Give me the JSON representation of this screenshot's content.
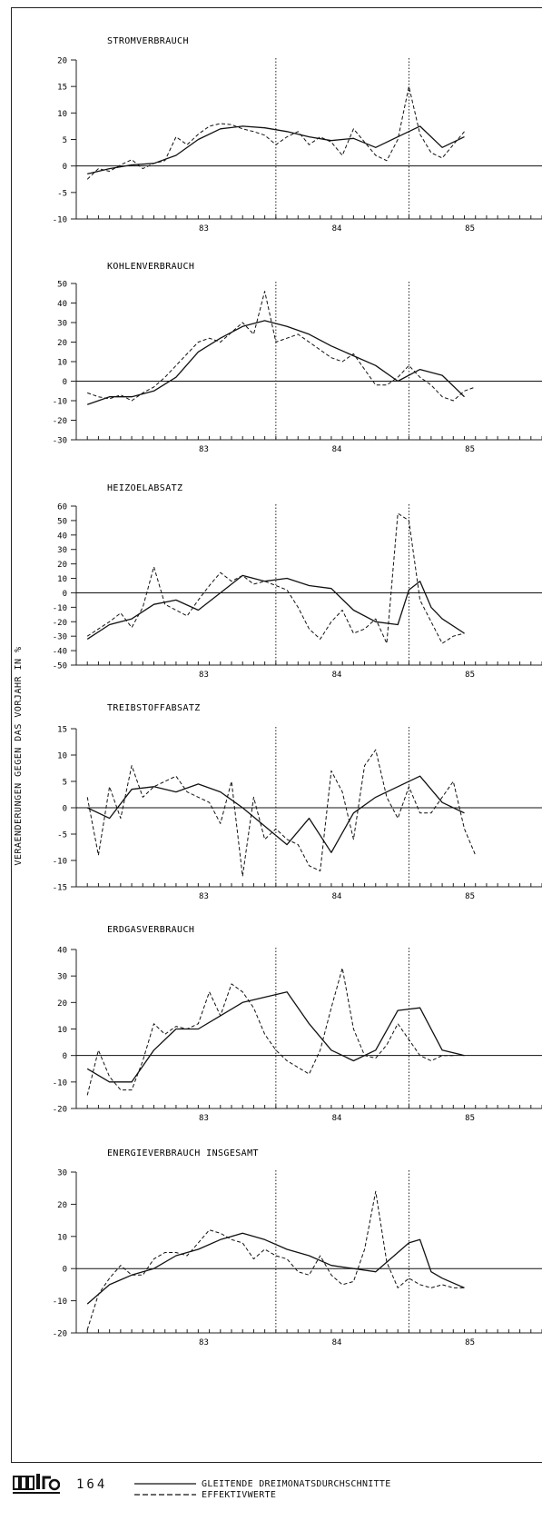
{
  "axis_label": "VERAENDERUNGEN GEGEN DAS VORJAHR IN %",
  "page_number": "164",
  "logo_name": "wifo-logo",
  "legend": [
    {
      "label": "GLEITENDE DREIMONATSDURCHSCHNITTE",
      "style": "solid"
    },
    {
      "label": "EFFEKTIVWERTE",
      "style": "dashed"
    }
  ],
  "colors": {
    "line": "#111111",
    "axis": "#222222",
    "background": "#ffffff"
  },
  "chart_data": [
    {
      "type": "line",
      "title": "STROMVERBRAUCH",
      "ylim": [
        -10,
        20
      ],
      "yticks": [
        20,
        15,
        10,
        5,
        0,
        -5,
        -10
      ],
      "x_tick_labels": [
        "83",
        "84",
        "85"
      ],
      "x_range_months": "1982-07 .. 1985-12",
      "period_markers": [
        "1984-01",
        "1985-01"
      ],
      "series": [
        {
          "name": "GLEITENDE DREIMONATSDURCHSCHNITTE",
          "style": "solid",
          "x": [
            "1982-08",
            "1982-10",
            "1982-12",
            "1983-02",
            "1983-04",
            "1983-06",
            "1983-08",
            "1983-10",
            "1983-12",
            "1984-02",
            "1984-04",
            "1984-06",
            "1984-08",
            "1984-10",
            "1984-12",
            "1985-02",
            "1985-04",
            "1985-06"
          ],
          "values": [
            -1.5,
            -0.5,
            0.2,
            0.5,
            2.0,
            5.0,
            7.0,
            7.5,
            7.2,
            6.5,
            5.5,
            4.8,
            5.2,
            3.5,
            5.5,
            7.5,
            3.5,
            5.5
          ]
        },
        {
          "name": "EFFEKTIVWERTE",
          "style": "dashed",
          "x": [
            "1982-08",
            "1982-09",
            "1982-10",
            "1982-11",
            "1982-12",
            "1983-01",
            "1983-02",
            "1983-03",
            "1983-04",
            "1983-05",
            "1983-06",
            "1983-07",
            "1983-08",
            "1983-09",
            "1983-10",
            "1983-11",
            "1983-12",
            "1984-01",
            "1984-02",
            "1984-03",
            "1984-04",
            "1984-05",
            "1984-06",
            "1984-07",
            "1984-08",
            "1984-09",
            "1984-10",
            "1984-11",
            "1984-12",
            "1985-01",
            "1985-02",
            "1985-03",
            "1985-04",
            "1985-05",
            "1985-06"
          ],
          "values": [
            -2.5,
            -0.5,
            -1.0,
            0.2,
            1.2,
            -0.5,
            0.5,
            1.0,
            5.5,
            4.0,
            6.0,
            7.5,
            8.0,
            7.8,
            7.0,
            6.5,
            5.8,
            4.0,
            5.5,
            6.5,
            4.0,
            5.5,
            4.5,
            2.0,
            7.0,
            4.5,
            2.0,
            1.0,
            5.0,
            15.0,
            6.0,
            2.5,
            1.5,
            4.0,
            6.5
          ]
        }
      ]
    },
    {
      "type": "line",
      "title": "KOHLENVERBRAUCH",
      "ylim": [
        -30,
        50
      ],
      "yticks": [
        50,
        40,
        30,
        20,
        10,
        0,
        -10,
        -20,
        -30
      ],
      "x_tick_labels": [
        "83",
        "84",
        "85"
      ],
      "x_range_months": "1982-07 .. 1985-12",
      "period_markers": [
        "1984-01",
        "1985-01"
      ],
      "series": [
        {
          "name": "GLEITENDE DREIMONATSDURCHSCHNITTE",
          "style": "solid",
          "x": [
            "1982-08",
            "1982-10",
            "1982-12",
            "1983-02",
            "1983-04",
            "1983-06",
            "1983-08",
            "1983-10",
            "1983-12",
            "1984-02",
            "1984-04",
            "1984-06",
            "1984-08",
            "1984-10",
            "1984-12",
            "1985-02",
            "1985-04",
            "1985-06"
          ],
          "values": [
            -12,
            -8,
            -8,
            -5,
            2,
            15,
            22,
            28,
            31,
            28,
            24,
            18,
            13,
            8,
            0,
            6,
            3,
            -8
          ]
        },
        {
          "name": "EFFEKTIVWERTE",
          "style": "dashed",
          "x": [
            "1982-08",
            "1982-09",
            "1982-10",
            "1982-11",
            "1982-12",
            "1983-01",
            "1983-02",
            "1983-03",
            "1983-04",
            "1983-05",
            "1983-06",
            "1983-07",
            "1983-08",
            "1983-09",
            "1983-10",
            "1983-11",
            "1983-12",
            "1984-01",
            "1984-02",
            "1984-03",
            "1984-04",
            "1984-05",
            "1984-06",
            "1984-07",
            "1984-08",
            "1984-09",
            "1984-10",
            "1984-11",
            "1984-12",
            "1985-01",
            "1985-02",
            "1985-03",
            "1985-04",
            "1985-05",
            "1985-06",
            "1985-07"
          ],
          "values": [
            -6,
            -8,
            -9,
            -7,
            -10,
            -6,
            -3,
            2,
            8,
            14,
            20,
            22,
            20,
            25,
            30,
            24,
            46,
            20,
            22,
            24,
            20,
            16,
            12,
            10,
            14,
            6,
            -2,
            -2,
            2,
            8,
            2,
            -2,
            -8,
            -10,
            -5,
            -3
          ]
        }
      ]
    },
    {
      "type": "line",
      "title": "HEIZOELABSATZ",
      "ylim": [
        -50,
        60
      ],
      "yticks": [
        60,
        50,
        40,
        30,
        20,
        10,
        0,
        -10,
        -20,
        -30,
        -40,
        -50
      ],
      "x_tick_labels": [
        "83",
        "84",
        "85"
      ],
      "x_range_months": "1982-07 .. 1985-12",
      "period_markers": [
        "1984-01",
        "1985-01"
      ],
      "series": [
        {
          "name": "GLEITENDE DREIMONATSDURCHSCHNITTE",
          "style": "solid",
          "x": [
            "1982-08",
            "1982-10",
            "1982-12",
            "1983-02",
            "1983-04",
            "1983-06",
            "1983-08",
            "1983-10",
            "1983-12",
            "1984-02",
            "1984-04",
            "1984-06",
            "1984-08",
            "1984-10",
            "1984-12",
            "1985-01",
            "1985-02",
            "1985-03",
            "1985-04",
            "1985-06"
          ],
          "values": [
            -32,
            -22,
            -18,
            -8,
            -5,
            -12,
            0,
            12,
            8,
            10,
            5,
            3,
            -12,
            -20,
            -22,
            2,
            8,
            -10,
            -18,
            -28
          ]
        },
        {
          "name": "EFFEKTIVWERTE",
          "style": "dashed",
          "x": [
            "1982-08",
            "1982-09",
            "1982-10",
            "1982-11",
            "1982-12",
            "1983-01",
            "1983-02",
            "1983-03",
            "1983-04",
            "1983-05",
            "1983-06",
            "1983-07",
            "1983-08",
            "1983-09",
            "1983-10",
            "1983-11",
            "1983-12",
            "1984-01",
            "1984-02",
            "1984-03",
            "1984-04",
            "1984-05",
            "1984-06",
            "1984-07",
            "1984-08",
            "1984-09",
            "1984-10",
            "1984-11",
            "1984-12",
            "1985-01",
            "1985-02",
            "1985-03",
            "1985-04",
            "1985-05",
            "1985-06"
          ],
          "values": [
            -30,
            -25,
            -20,
            -14,
            -24,
            -10,
            18,
            -8,
            -12,
            -16,
            -5,
            5,
            14,
            8,
            12,
            6,
            8,
            5,
            2,
            -10,
            -25,
            -32,
            -20,
            -12,
            -28,
            -25,
            -18,
            -35,
            55,
            50,
            -5,
            -20,
            -35,
            -30,
            -28
          ]
        }
      ]
    },
    {
      "type": "line",
      "title": "TREIBSTOFFABSATZ",
      "ylim": [
        -15,
        15
      ],
      "yticks": [
        15,
        10,
        5,
        0,
        -5,
        -10,
        -15
      ],
      "x_tick_labels": [
        "83",
        "84",
        "85"
      ],
      "x_range_months": "1982-07 .. 1985-12",
      "period_markers": [
        "1984-01",
        "1985-01"
      ],
      "series": [
        {
          "name": "GLEITENDE DREIMONATSDURCHSCHNITTE",
          "style": "solid",
          "x": [
            "1982-08",
            "1982-10",
            "1982-12",
            "1983-02",
            "1983-04",
            "1983-06",
            "1983-08",
            "1983-10",
            "1983-12",
            "1984-02",
            "1984-04",
            "1984-06",
            "1984-08",
            "1984-10",
            "1984-12",
            "1985-02",
            "1985-04",
            "1985-06"
          ],
          "values": [
            0,
            -2,
            3.5,
            4,
            3,
            4.5,
            3,
            0,
            -3.5,
            -7,
            -2,
            -8.5,
            -1,
            2,
            4,
            6,
            1,
            -1
          ]
        },
        {
          "name": "EFFEKTIVWERTE",
          "style": "dashed",
          "x": [
            "1982-08",
            "1982-09",
            "1982-10",
            "1982-11",
            "1982-12",
            "1983-01",
            "1983-02",
            "1983-03",
            "1983-04",
            "1983-05",
            "1983-06",
            "1983-07",
            "1983-08",
            "1983-09",
            "1983-10",
            "1983-11",
            "1983-12",
            "1984-01",
            "1984-02",
            "1984-03",
            "1984-04",
            "1984-05",
            "1984-06",
            "1984-07",
            "1984-08",
            "1984-09",
            "1984-10",
            "1984-11",
            "1984-12",
            "1985-01",
            "1985-02",
            "1985-03",
            "1985-04",
            "1985-05",
            "1985-06",
            "1985-07"
          ],
          "values": [
            2,
            -9,
            4,
            -2,
            8,
            2,
            4,
            5,
            6,
            3,
            2,
            1,
            -3,
            5,
            -13,
            2,
            -6,
            -4,
            -6,
            -7,
            -11,
            -12,
            7,
            3,
            -6,
            8,
            11,
            2,
            -2,
            4,
            -1,
            -1,
            2,
            5,
            -4,
            -9
          ]
        }
      ]
    },
    {
      "type": "line",
      "title": "ERDGASVERBRAUCH",
      "ylim": [
        -20,
        40
      ],
      "yticks": [
        40,
        30,
        20,
        10,
        0,
        -10,
        -20
      ],
      "x_tick_labels": [
        "83",
        "84",
        "85"
      ],
      "x_range_months": "1982-07 .. 1985-12",
      "period_markers": [
        "1984-01",
        "1985-01"
      ],
      "series": [
        {
          "name": "GLEITENDE DREIMONATSDURCHSCHNITTE",
          "style": "solid",
          "x": [
            "1982-08",
            "1982-10",
            "1982-12",
            "1983-02",
            "1983-04",
            "1983-06",
            "1983-08",
            "1983-10",
            "1983-12",
            "1984-02",
            "1984-04",
            "1984-06",
            "1984-08",
            "1984-10",
            "1984-12",
            "1985-02",
            "1985-04",
            "1985-06"
          ],
          "values": [
            -5,
            -10,
            -10,
            2,
            10,
            10,
            15,
            20,
            22,
            24,
            12,
            2,
            -2,
            2,
            17,
            18,
            2,
            0
          ]
        },
        {
          "name": "EFFEKTIVWERTE",
          "style": "dashed",
          "x": [
            "1982-08",
            "1982-09",
            "1982-10",
            "1982-11",
            "1982-12",
            "1983-01",
            "1983-02",
            "1983-03",
            "1983-04",
            "1983-05",
            "1983-06",
            "1983-07",
            "1983-08",
            "1983-09",
            "1983-10",
            "1983-11",
            "1983-12",
            "1984-01",
            "1984-02",
            "1984-04",
            "1984-05",
            "1984-06",
            "1984-07",
            "1984-08",
            "1984-09",
            "1984-10",
            "1984-11",
            "1984-12",
            "1985-01",
            "1985-02",
            "1985-03",
            "1985-04",
            "1985-05"
          ],
          "values": [
            -15,
            2,
            -8,
            -13,
            -13,
            -2,
            12,
            8,
            11,
            10,
            12,
            24,
            15,
            27,
            24,
            18,
            8,
            2,
            -2,
            -7,
            2,
            18,
            33,
            10,
            0,
            -1,
            4,
            12,
            6,
            0,
            -2,
            0,
            0
          ]
        }
      ]
    },
    {
      "type": "line",
      "title": "ENERGIEVERBRAUCH INSGESAMT",
      "ylim": [
        -20,
        30
      ],
      "yticks": [
        30,
        20,
        10,
        0,
        -10,
        -20
      ],
      "x_tick_labels": [
        "83",
        "84",
        "85"
      ],
      "x_range_months": "1982-07 .. 1985-12",
      "period_markers": [
        "1984-01",
        "1985-01"
      ],
      "series": [
        {
          "name": "GLEITENDE DREIMONATSDURCHSCHNITTE",
          "style": "solid",
          "x": [
            "1982-08",
            "1982-10",
            "1982-12",
            "1983-02",
            "1983-04",
            "1983-06",
            "1983-08",
            "1983-10",
            "1983-12",
            "1984-02",
            "1984-04",
            "1984-06",
            "1984-08",
            "1984-10",
            "1984-12",
            "1985-01",
            "1985-02",
            "1985-03",
            "1985-04",
            "1985-06"
          ],
          "values": [
            -11,
            -5,
            -2,
            0,
            4,
            6,
            9,
            11,
            9,
            6,
            4,
            1,
            0,
            -1,
            5,
            8,
            9,
            -1,
            -3,
            -6
          ]
        },
        {
          "name": "EFFEKTIVWERTE",
          "style": "dashed",
          "x": [
            "1982-08",
            "1982-09",
            "1982-10",
            "1982-11",
            "1982-12",
            "1983-01",
            "1983-02",
            "1983-03",
            "1983-04",
            "1983-05",
            "1983-06",
            "1983-07",
            "1983-08",
            "1983-09",
            "1983-10",
            "1983-11",
            "1983-12",
            "1984-01",
            "1984-02",
            "1984-03",
            "1984-04",
            "1984-05",
            "1984-06",
            "1984-07",
            "1984-08",
            "1984-09",
            "1984-10",
            "1984-11",
            "1984-12",
            "1985-01",
            "1985-02",
            "1985-03",
            "1985-04",
            "1985-05",
            "1985-06"
          ],
          "values": [
            -19,
            -8,
            -3,
            1,
            -2,
            -2,
            3,
            5,
            5,
            4,
            8,
            12,
            11,
            9,
            8,
            3,
            6,
            4,
            3,
            -1,
            -2,
            4,
            -2,
            -5,
            -4,
            6,
            24,
            2,
            -6,
            -3,
            -5,
            -6,
            -5,
            -6,
            -6
          ]
        }
      ]
    }
  ]
}
